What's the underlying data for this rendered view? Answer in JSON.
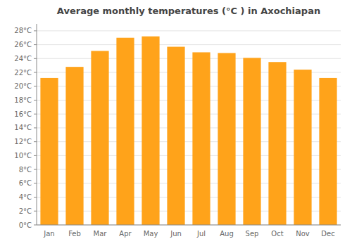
{
  "chart_data": {
    "type": "bar",
    "title": "Average monthly temperatures (°C ) in Axochiapan",
    "categories": [
      "Jan",
      "Feb",
      "Mar",
      "Apr",
      "May",
      "Jun",
      "Jul",
      "Aug",
      "Sep",
      "Oct",
      "Nov",
      "Dec"
    ],
    "values": [
      21.2,
      22.8,
      25.1,
      27.0,
      27.2,
      25.7,
      24.9,
      24.8,
      24.1,
      23.5,
      22.4,
      21.2
    ],
    "color": "#ffa31a",
    "ylim": [
      0,
      29
    ],
    "yticks": [
      {
        "value": 0,
        "label": "0°C"
      },
      {
        "value": 2,
        "label": "2°C"
      },
      {
        "value": 4,
        "label": "4°C"
      },
      {
        "value": 6,
        "label": "6°C"
      },
      {
        "value": 8,
        "label": "8°C"
      },
      {
        "value": 10,
        "label": "10°C"
      },
      {
        "value": 12,
        "label": "12°C"
      },
      {
        "value": 14,
        "label": "14°C"
      },
      {
        "value": 16,
        "label": "16°C"
      },
      {
        "value": 18,
        "label": "18°C"
      },
      {
        "value": 20,
        "label": "20°C"
      },
      {
        "value": 22,
        "label": "22°C"
      },
      {
        "value": 24,
        "label": "24°C"
      },
      {
        "value": 26,
        "label": "26°C"
      },
      {
        "value": 28,
        "label": "28°C"
      }
    ],
    "grid": true
  }
}
